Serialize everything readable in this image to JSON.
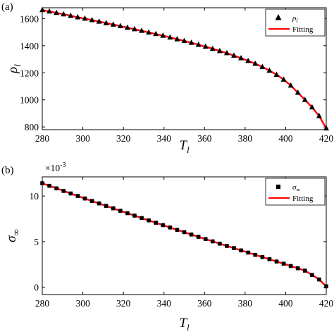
{
  "chart_data": [
    {
      "type": "scatter",
      "panel_label": "(a)",
      "xlabel_main": "T",
      "xlabel_sub": "l",
      "ylabel_main": "ρ",
      "ylabel_sub": "l",
      "xlim": [
        280,
        420
      ],
      "ylim": [
        780,
        1680
      ],
      "xticks": [
        280,
        300,
        320,
        340,
        360,
        380,
        400,
        420
      ],
      "yticks": [
        800,
        1000,
        1200,
        1400,
        1600
      ],
      "legend_position": "top-right",
      "series": [
        {
          "name": "ρl",
          "legend_main": "ρ",
          "legend_sub": "l",
          "marker": "triangle",
          "color": "#000000",
          "x": [
            280,
            283.5,
            287,
            290.5,
            294,
            297.5,
            301,
            304.5,
            308,
            311.5,
            315,
            318.5,
            322,
            325.5,
            329,
            332.5,
            336,
            339.5,
            343,
            346.5,
            350,
            353.5,
            357,
            360.5,
            364,
            367.5,
            371,
            374.5,
            378,
            381.5,
            385,
            388.5,
            392,
            395.5,
            399,
            402.5,
            406,
            409.5,
            413,
            416.5,
            420
          ],
          "y": [
            1663,
            1653,
            1642,
            1632,
            1621,
            1610,
            1600,
            1589,
            1578,
            1567,
            1556,
            1545,
            1533,
            1522,
            1510,
            1498,
            1486,
            1474,
            1461,
            1448,
            1435,
            1422,
            1407,
            1393,
            1377,
            1361,
            1345,
            1327,
            1308,
            1288,
            1267,
            1243,
            1216,
            1186,
            1150,
            1106,
            1053,
            1000,
            945,
            881,
            790
          ]
        },
        {
          "name": "Fitting",
          "marker": "line",
          "color": "#ff0000",
          "x": [
            280,
            283.5,
            287,
            290.5,
            294,
            297.5,
            301,
            304.5,
            308,
            311.5,
            315,
            318.5,
            322,
            325.5,
            329,
            332.5,
            336,
            339.5,
            343,
            346.5,
            350,
            353.5,
            357,
            360.5,
            364,
            367.5,
            371,
            374.5,
            378,
            381.5,
            385,
            388.5,
            392,
            395.5,
            399,
            402.5,
            406,
            409.5,
            413,
            416.5,
            420
          ],
          "y": [
            1663,
            1653,
            1642,
            1632,
            1621,
            1610,
            1600,
            1589,
            1578,
            1567,
            1556,
            1545,
            1533,
            1522,
            1510,
            1498,
            1486,
            1474,
            1461,
            1448,
            1435,
            1422,
            1407,
            1393,
            1377,
            1361,
            1345,
            1327,
            1308,
            1288,
            1267,
            1243,
            1216,
            1186,
            1150,
            1106,
            1053,
            1000,
            945,
            881,
            790
          ]
        }
      ]
    },
    {
      "type": "scatter",
      "panel_label": "(b)",
      "xlabel_main": "T",
      "xlabel_sub": "l",
      "ylabel_main": "σ",
      "ylabel_sub": "∞",
      "y_multiplier_base": "×10",
      "y_multiplier_exp": "-3",
      "xlim": [
        280,
        420
      ],
      "ylim": [
        -0.8,
        12.1
      ],
      "xticks": [
        280,
        300,
        320,
        340,
        360,
        380,
        400,
        420
      ],
      "yticks": [
        0,
        5,
        10
      ],
      "legend_position": "top-right",
      "series": [
        {
          "name": "σ∞",
          "legend_main": "σ",
          "legend_sub": "∞",
          "marker": "square",
          "color": "#000000",
          "x": [
            280,
            283.5,
            287,
            290.5,
            294,
            297.5,
            301,
            304.5,
            308,
            311.5,
            315,
            318.5,
            322,
            325.5,
            329,
            332.5,
            336,
            339.5,
            343,
            346.5,
            350,
            353.5,
            357,
            360.5,
            364,
            367.5,
            371,
            374.5,
            378,
            381.5,
            385,
            388.5,
            392,
            395.5,
            399,
            402.5,
            406,
            409.5,
            413,
            416.5,
            420
          ],
          "y": [
            11.4,
            11.12,
            10.84,
            10.56,
            10.28,
            10.01,
            9.73,
            9.46,
            9.19,
            8.92,
            8.65,
            8.38,
            8.12,
            7.85,
            7.59,
            7.33,
            7.07,
            6.81,
            6.55,
            6.29,
            6.04,
            5.78,
            5.53,
            5.28,
            5.03,
            4.78,
            4.53,
            4.29,
            4.04,
            3.8,
            3.55,
            3.31,
            3.07,
            2.82,
            2.58,
            2.33,
            2.08,
            1.82,
            1.35,
            0.85,
            0.1
          ]
        },
        {
          "name": "Fitting",
          "marker": "line",
          "color": "#ff0000",
          "x": [
            280,
            283.5,
            287,
            290.5,
            294,
            297.5,
            301,
            304.5,
            308,
            311.5,
            315,
            318.5,
            322,
            325.5,
            329,
            332.5,
            336,
            339.5,
            343,
            346.5,
            350,
            353.5,
            357,
            360.5,
            364,
            367.5,
            371,
            374.5,
            378,
            381.5,
            385,
            388.5,
            392,
            395.5,
            399,
            402.5,
            406,
            409.5,
            413,
            416.5,
            420
          ],
          "y": [
            11.4,
            11.12,
            10.84,
            10.56,
            10.28,
            10.01,
            9.73,
            9.46,
            9.19,
            8.92,
            8.65,
            8.38,
            8.12,
            7.85,
            7.59,
            7.33,
            7.07,
            6.81,
            6.55,
            6.29,
            6.04,
            5.78,
            5.53,
            5.28,
            5.03,
            4.78,
            4.53,
            4.29,
            4.04,
            3.8,
            3.55,
            3.31,
            3.07,
            2.82,
            2.58,
            2.33,
            2.08,
            1.82,
            1.35,
            0.85,
            0.1
          ]
        }
      ]
    }
  ]
}
